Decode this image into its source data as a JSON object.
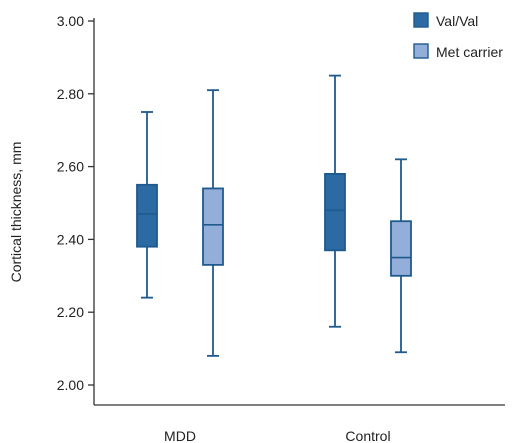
{
  "chart_data": {
    "type": "box",
    "title": "",
    "ylabel": "Cortical thickness, mm",
    "xlabel": "",
    "ylim": [
      2.0,
      3.0
    ],
    "yticks": [
      "2.00",
      "2.20",
      "2.40",
      "2.60",
      "2.80",
      "3.00"
    ],
    "categories": [
      "MDD",
      "Control"
    ],
    "legend_position": "top-right",
    "series": [
      {
        "name": "Val/Val",
        "color": "#2c6aa3",
        "boxes": [
          {
            "category": "MDD",
            "min": 2.24,
            "q1": 2.38,
            "median": 2.47,
            "q3": 2.55,
            "max": 2.75
          },
          {
            "category": "Control",
            "min": 2.16,
            "q1": 2.37,
            "median": 2.48,
            "q3": 2.58,
            "max": 2.85
          }
        ]
      },
      {
        "name": "Met carrier",
        "color": "#93aed9",
        "boxes": [
          {
            "category": "MDD",
            "min": 2.08,
            "q1": 2.33,
            "median": 2.44,
            "q3": 2.54,
            "max": 2.81
          },
          {
            "category": "Control",
            "min": 2.09,
            "q1": 2.3,
            "median": 2.35,
            "q3": 2.45,
            "max": 2.62
          }
        ]
      }
    ],
    "stroke_color": "#1f5a8e",
    "axis_color": "#333333"
  }
}
